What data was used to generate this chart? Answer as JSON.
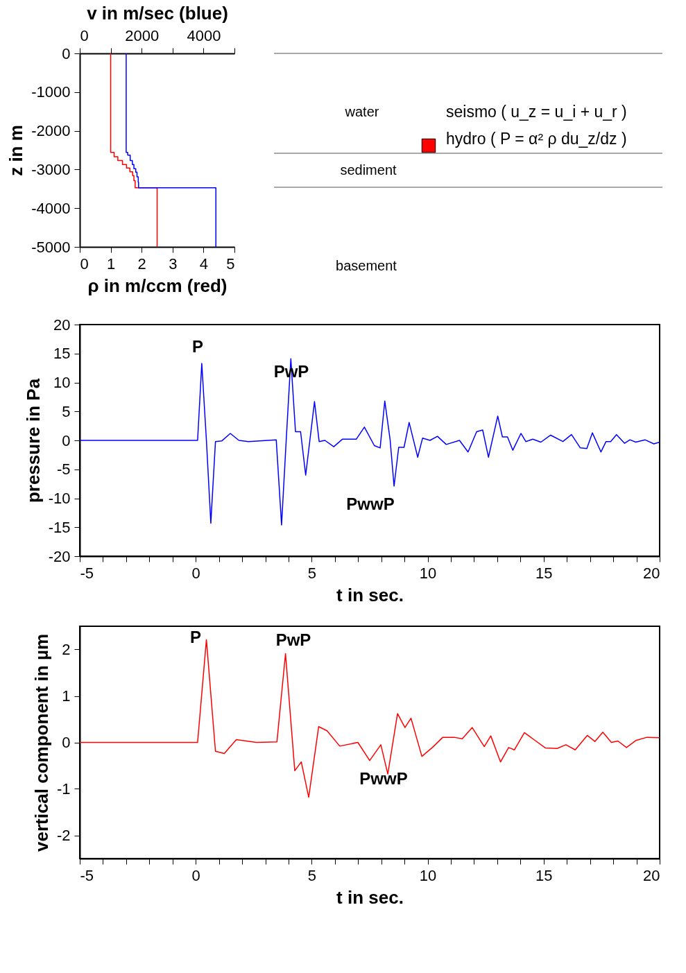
{
  "chart_data": [
    {
      "type": "line",
      "xlabel": "ρ in m/ccm (red)",
      "x2label": "v in m/sec (blue)",
      "ylabel": "z in m",
      "xlim": [
        0,
        5
      ],
      "xticks": [
        0,
        1,
        2,
        3,
        4,
        5
      ],
      "x2lim": [
        0,
        5000
      ],
      "x2ticks": [
        0,
        {
          "value": 1000,
          "label": null
        },
        2000,
        {
          "value": 3000,
          "label": null
        },
        4000,
        {
          "value": 5000,
          "label": null
        }
      ],
      "ylim": [
        -5000,
        0
      ],
      "yticks": [
        0,
        -1000,
        -2000,
        -3000,
        -4000,
        -5000
      ],
      "grid": false,
      "series": [
        {
          "color": "#ff0000",
          "x": [
            1,
            1,
            1.11,
            1.11,
            1.23,
            1.23,
            1.38,
            1.38,
            1.51,
            1.51,
            1.62,
            1.62,
            1.71,
            1.71,
            1.75,
            1.75,
            1.79,
            1.79,
            2.5,
            2.5
          ],
          "values": [
            0,
            -2560,
            -2560,
            -2670,
            -2670,
            -2770,
            -2770,
            -2870,
            -2870,
            -2960,
            -2960,
            -3060,
            -3060,
            -3160,
            -3160,
            -3290,
            -3290,
            -3470,
            -3470,
            -5000
          ]
        },
        {
          "color": "#0000ff",
          "axis": "x2",
          "x": [
            1500,
            1500,
            1550,
            1550,
            1630,
            1630,
            1700,
            1700,
            1750,
            1750,
            1810,
            1810,
            1850,
            1850,
            1890,
            1890,
            1900,
            1900,
            4400,
            4400
          ],
          "values": [
            0,
            -2560,
            -2560,
            -2630,
            -2630,
            -2770,
            -2770,
            -2870,
            -2870,
            -2980,
            -2980,
            -3070,
            -3070,
            -3190,
            -3190,
            -3330,
            -3330,
            -3470,
            -3470,
            -5000
          ]
        }
      ]
    },
    {
      "type": "other",
      "annotations": [
        "water",
        "sediment",
        "basement",
        "seismo ( u_z = u_i + u_r )",
        "hydro ( P = α² ρ du_z/dz )"
      ]
    },
    {
      "type": "line",
      "xlabel": "t in sec.",
      "ylabel": "pressure in Pa",
      "xlim": [
        -5,
        20
      ],
      "xticks": [
        -5,
        {
          "value": -4,
          "label": null
        },
        {
          "value": -3,
          "label": null
        },
        {
          "value": -2,
          "label": null
        },
        {
          "value": -1,
          "label": null
        },
        0,
        {
          "value": 1,
          "label": null
        },
        {
          "value": 2,
          "label": null
        },
        {
          "value": 3,
          "label": null
        },
        {
          "value": 4,
          "label": null
        },
        5,
        {
          "value": 6,
          "label": null
        },
        {
          "value": 7,
          "label": null
        },
        {
          "value": 8,
          "label": null
        },
        {
          "value": 9,
          "label": null
        },
        10,
        {
          "value": 11,
          "label": null
        },
        {
          "value": 12,
          "label": null
        },
        {
          "value": 13,
          "label": null
        },
        {
          "value": 14,
          "label": null
        },
        15,
        {
          "value": 16,
          "label": null
        },
        {
          "value": 17,
          "label": null
        },
        {
          "value": 18,
          "label": null
        },
        {
          "value": 19,
          "label": null
        },
        20
      ],
      "ylim": [
        -20,
        20
      ],
      "yticks": [
        -20,
        -15,
        -10,
        -5,
        0,
        5,
        10,
        15,
        20
      ],
      "grid": false,
      "annotations": [
        "P",
        "PwP",
        "PwwP"
      ],
      "series": [
        {
          "color": "#0000ff",
          "x": [
            -5,
            0.08,
            0.26,
            0.46,
            0.65,
            0.85,
            1.12,
            1.49,
            1.86,
            2.27,
            3.47,
            3.7,
            3.9,
            4.1,
            4.3,
            4.52,
            4.74,
            4.92,
            5.12,
            5.32,
            5.57,
            5.95,
            6.32,
            6.92,
            7.27,
            7.7,
            7.95,
            8.15,
            8.38,
            8.55,
            8.75,
            8.98,
            9.2,
            9.57,
            9.78,
            10.1,
            10.42,
            10.8,
            11.37,
            11.74,
            12.11,
            12.37,
            12.62,
            13.02,
            13.22,
            13.44,
            13.67,
            14.02,
            14.23,
            14.53,
            14.88,
            15.3,
            15.83,
            16.2,
            16.58,
            16.86,
            17.1,
            17.47,
            17.69,
            17.89,
            18.14,
            18.49,
            18.72,
            18.97,
            19.37,
            19.75,
            20
          ],
          "values": [
            0,
            0,
            13.3,
            0,
            -14.3,
            -0.2,
            -0.1,
            1.2,
            0,
            -0.2,
            0.1,
            -14.6,
            0,
            14.1,
            1.5,
            1.5,
            -6,
            0,
            6.7,
            -0.2,
            0,
            -1.1,
            0.2,
            0.2,
            2.3,
            -0.9,
            -1.3,
            6.8,
            0.1,
            -7.9,
            -1.2,
            -1.2,
            3.1,
            -2.9,
            0.4,
            0,
            0.7,
            -0.7,
            0,
            -2,
            1.5,
            1.8,
            -2.9,
            4.2,
            0.6,
            0.6,
            -1.7,
            1.2,
            -0.2,
            0.2,
            -0.3,
            0.9,
            -0.2,
            1,
            -1.3,
            -1.4,
            1.3,
            -2,
            -0.2,
            -0.2,
            1,
            -0.5,
            0.1,
            -0.3,
            0.1,
            -0.6,
            -0.3
          ]
        }
      ]
    },
    {
      "type": "line",
      "xlabel": "t in sec.",
      "ylabel": "vertical component in µm",
      "xlim": [
        -5,
        20
      ],
      "xticks": [
        -5,
        {
          "value": -4,
          "label": null
        },
        {
          "value": -3,
          "label": null
        },
        {
          "value": -2,
          "label": null
        },
        {
          "value": -1,
          "label": null
        },
        0,
        {
          "value": 1,
          "label": null
        },
        {
          "value": 2,
          "label": null
        },
        {
          "value": 3,
          "label": null
        },
        {
          "value": 4,
          "label": null
        },
        5,
        {
          "value": 6,
          "label": null
        },
        {
          "value": 7,
          "label": null
        },
        {
          "value": 8,
          "label": null
        },
        {
          "value": 9,
          "label": null
        },
        10,
        {
          "value": 11,
          "label": null
        },
        {
          "value": 12,
          "label": null
        },
        {
          "value": 13,
          "label": null
        },
        {
          "value": 14,
          "label": null
        },
        15,
        {
          "value": 16,
          "label": null
        },
        {
          "value": 17,
          "label": null
        },
        {
          "value": 18,
          "label": null
        },
        {
          "value": 19,
          "label": null
        },
        20
      ],
      "ylim": [
        -2.5,
        2.5
      ],
      "yticks": [
        -2,
        -1,
        0,
        1,
        2
      ],
      "grid": false,
      "annotations": [
        "P",
        "PwP",
        "PwwP"
      ],
      "series": [
        {
          "color": "#ff0000",
          "x": [
            -5,
            0.08,
            0.46,
            0.85,
            1.23,
            1.75,
            2.62,
            3.5,
            3.87,
            4.27,
            4.55,
            4.87,
            5.3,
            5.66,
            6.21,
            6.99,
            7.5,
            7.98,
            8.28,
            8.7,
            9.02,
            9.28,
            9.75,
            10.2,
            10.65,
            11.14,
            11.49,
            11.92,
            12.44,
            12.72,
            13.14,
            13.49,
            13.74,
            14.17,
            14.58,
            15.08,
            15.58,
            15.96,
            16.36,
            16.88,
            17.21,
            17.55,
            17.92,
            18.2,
            18.57,
            18.97,
            19.45,
            20
          ],
          "values": [
            0,
            0,
            2.21,
            -0.19,
            -0.24,
            0.06,
            0,
            0.01,
            1.91,
            -0.61,
            -0.42,
            -1.18,
            0.34,
            0.25,
            -0.08,
            0,
            -0.39,
            -0.05,
            -0.68,
            0.62,
            0.32,
            0.52,
            -0.3,
            -0.11,
            0.11,
            0.11,
            0.08,
            0.32,
            -0.09,
            0.14,
            -0.42,
            -0.11,
            -0.16,
            0.21,
            0.06,
            -0.12,
            -0.13,
            -0.05,
            -0.16,
            0.15,
            0.02,
            0.22,
            0,
            0.03,
            -0.11,
            0.04,
            0.11,
            0.1
          ]
        }
      ]
    }
  ]
}
